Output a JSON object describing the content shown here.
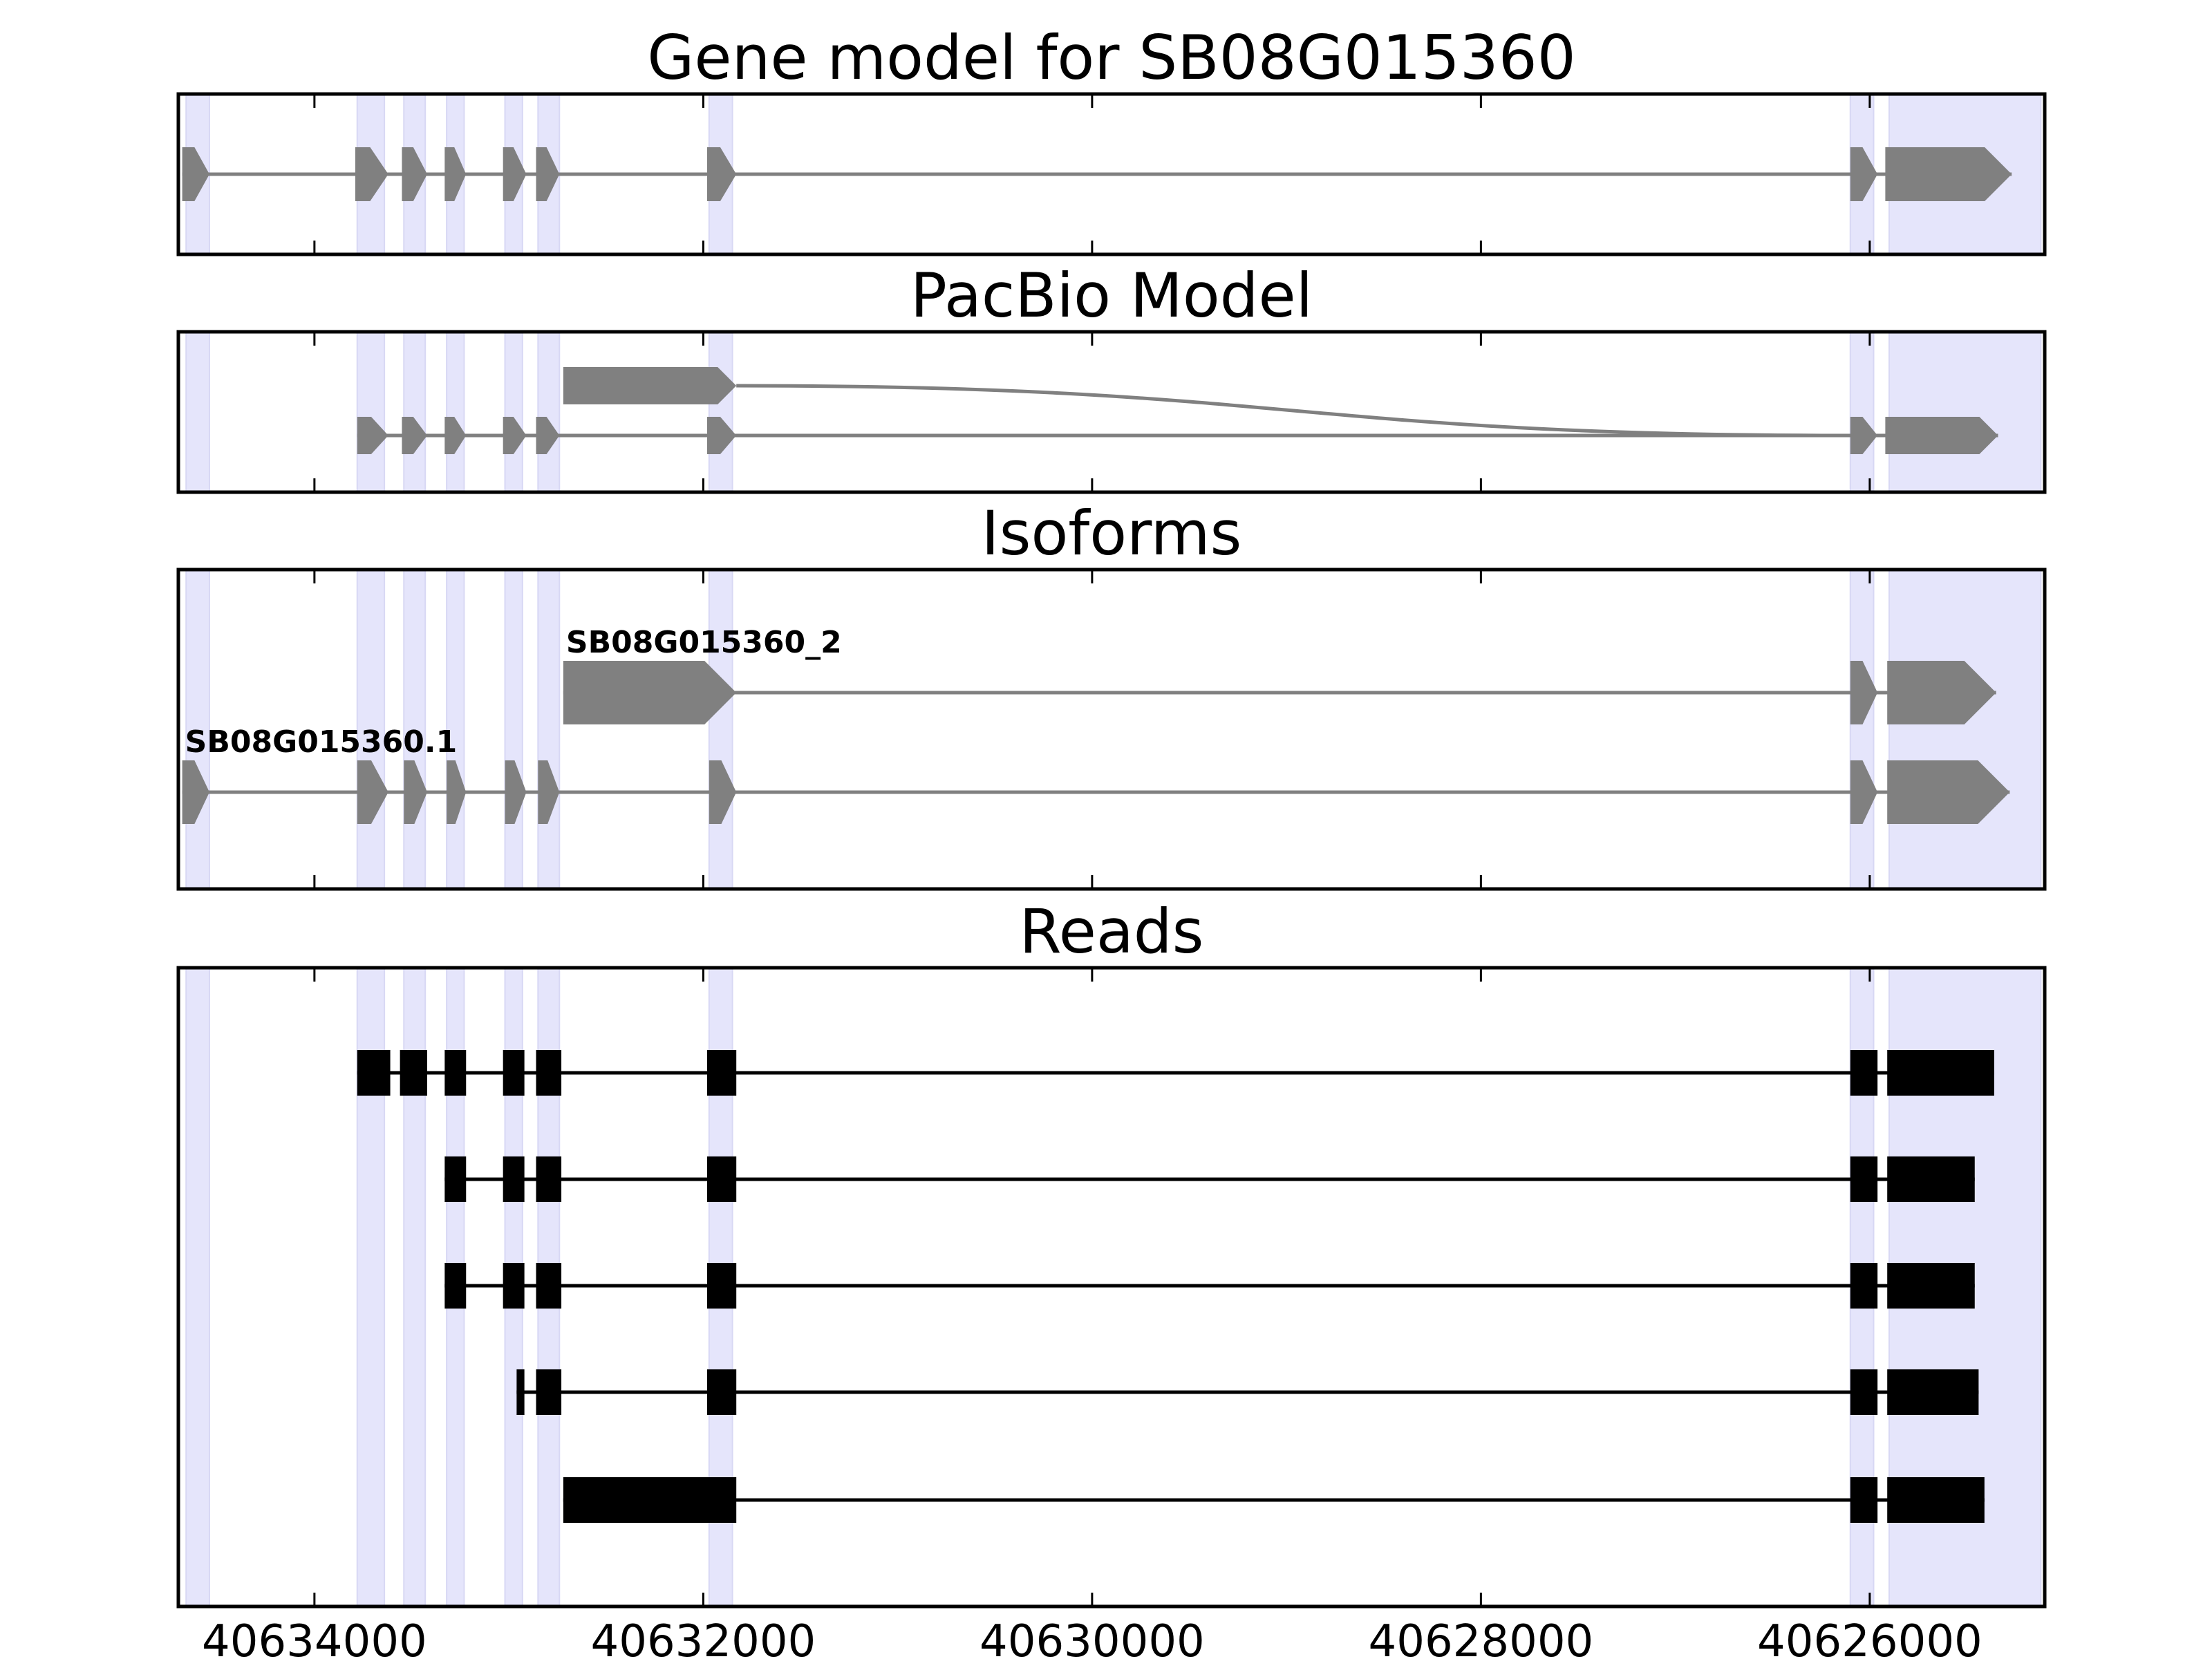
{
  "chart_data": {
    "type": "gene-track",
    "x_axis": {
      "reversed": true,
      "range": [
        40634700,
        40625100
      ],
      "ticks": [
        40634000,
        40632000,
        40630000,
        40628000,
        40626000
      ],
      "tick_labels": [
        "40634000",
        "40632000",
        "40630000",
        "40628000",
        "40626000"
      ]
    },
    "highlight_regions": [
      [
        40634660,
        40634540
      ],
      [
        40633780,
        40633640
      ],
      [
        40633540,
        40633430
      ],
      [
        40633320,
        40633230
      ],
      [
        40633020,
        40632930
      ],
      [
        40632850,
        40632740
      ],
      [
        40631970,
        40631850
      ],
      [
        40626100,
        40625980
      ],
      [
        40625900,
        40625120
      ]
    ],
    "colors": {
      "model": "#808080",
      "reads": "#000000",
      "highlight": "#e5e5fb"
    },
    "panels": [
      {
        "id": "gene-model",
        "title": "Gene model for SB08G015360",
        "tracks": [
          {
            "label": "",
            "exons": [
              [
                40634680,
                40634540
              ],
              [
                40633790,
                40633620
              ],
              [
                40633550,
                40633420
              ],
              [
                40633330,
                40633220
              ],
              [
                40633030,
                40632910
              ],
              [
                40632860,
                40632740
              ],
              [
                40631980,
                40631830
              ],
              [
                40626100,
                40625960
              ],
              [
                40625920,
                40625270
              ]
            ]
          }
        ]
      },
      {
        "id": "pacbio-model",
        "title": "PacBio Model",
        "connector": {
          "from": 40631830,
          "to": 40626100,
          "track_from": 0,
          "track_to": 1
        },
        "tracks": [
          {
            "label": "",
            "exons": [
              [
                40632720,
                40631830
              ]
            ]
          },
          {
            "label": "",
            "exons": [
              [
                40633780,
                40633620
              ],
              [
                40633550,
                40633420
              ],
              [
                40633330,
                40633220
              ],
              [
                40633030,
                40632910
              ],
              [
                40632860,
                40632740
              ],
              [
                40631980,
                40631830
              ],
              [
                40626100,
                40625960
              ],
              [
                40625920,
                40625340
              ]
            ]
          }
        ]
      },
      {
        "id": "isoforms",
        "title": "Isoforms",
        "tracks": [
          {
            "label": "SB08G015360_2",
            "exons": [
              [
                40632720,
                40631830
              ],
              [
                40626100,
                40625960
              ],
              [
                40625910,
                40625350
              ]
            ]
          },
          {
            "label": "SB08G015360.1",
            "exons": [
              [
                40634680,
                40634540
              ],
              [
                40633780,
                40633620
              ],
              [
                40633540,
                40633420
              ],
              [
                40633320,
                40633220
              ],
              [
                40633020,
                40632910
              ],
              [
                40632850,
                40632740
              ],
              [
                40631970,
                40631830
              ],
              [
                40626100,
                40625960
              ],
              [
                40625910,
                40625280
              ]
            ]
          }
        ]
      },
      {
        "id": "reads",
        "title": "Reads",
        "tracks": [
          {
            "label": "",
            "exons": [
              [
                40633780,
                40633610
              ],
              [
                40633560,
                40633420
              ],
              [
                40633330,
                40633220
              ],
              [
                40633030,
                40632920
              ],
              [
                40632860,
                40632730
              ],
              [
                40631980,
                40631830
              ],
              [
                40626100,
                40625960
              ],
              [
                40625910,
                40625360
              ]
            ]
          },
          {
            "label": "",
            "exons": [
              [
                40633330,
                40633220
              ],
              [
                40633030,
                40632920
              ],
              [
                40632860,
                40632730
              ],
              [
                40631980,
                40631830
              ],
              [
                40626100,
                40625960
              ],
              [
                40625910,
                40625460
              ]
            ]
          },
          {
            "label": "",
            "exons": [
              [
                40633330,
                40633220
              ],
              [
                40633030,
                40632920
              ],
              [
                40632860,
                40632730
              ],
              [
                40631980,
                40631830
              ],
              [
                40626100,
                40625960
              ],
              [
                40625910,
                40625460
              ]
            ]
          },
          {
            "label": "",
            "exons": [
              [
                40632960,
                40632920
              ],
              [
                40632860,
                40632730
              ],
              [
                40631980,
                40631830
              ],
              [
                40626100,
                40625960
              ],
              [
                40625910,
                40625440
              ]
            ]
          },
          {
            "label": "",
            "exons": [
              [
                40632720,
                40631830
              ],
              [
                40626100,
                40625960
              ],
              [
                40625910,
                40625410
              ]
            ]
          }
        ]
      }
    ]
  }
}
